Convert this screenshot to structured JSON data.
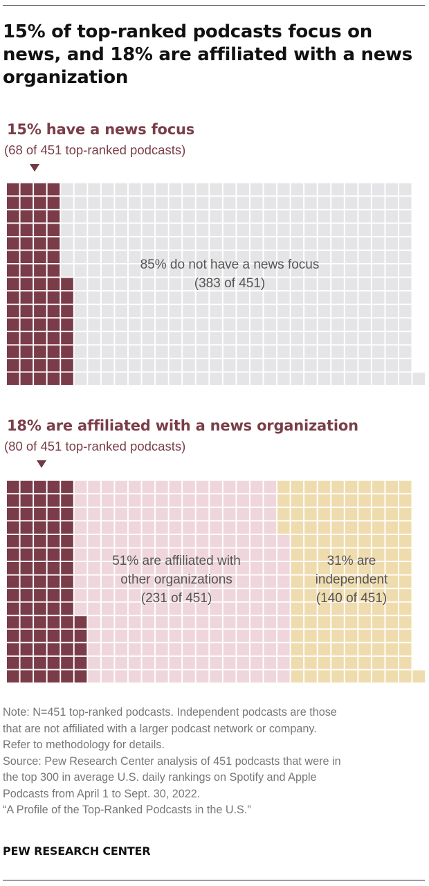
{
  "title": "15% of top-ranked podcasts focus on news, and 18% are affiliated with a news organization",
  "colors": {
    "news": "#7b3c49",
    "other_empty": "#e5e5e7",
    "other_org": "#eed6dc",
    "independent": "#efdcae",
    "label_text": "#7a3e48"
  },
  "chart_data": [
    {
      "type": "waffle",
      "total": 451,
      "header": "15% have a news focus",
      "subheader": "(68 of 451 top-ranked podcasts)",
      "segments": [
        {
          "name": "news focus",
          "count": 68,
          "label": ""
        },
        {
          "name": "no news focus",
          "count": 383,
          "label": "85% do not have a news focus\n(383 of 451)"
        }
      ]
    },
    {
      "type": "waffle",
      "total": 451,
      "header": "18% are affiliated with a news organization",
      "subheader": "(80 of 451 top-ranked podcasts)",
      "segments": [
        {
          "name": "news organization",
          "count": 80,
          "label": ""
        },
        {
          "name": "other organizations",
          "count": 231,
          "label": "51% are affiliated with\nother organizations\n(231 of 451)"
        },
        {
          "name": "independent",
          "count": 140,
          "label": "31% are\nindependent\n(140 of 451)"
        }
      ]
    }
  ],
  "notes": [
    "Note: N=451 top-ranked podcasts. Independent podcasts are those",
    "that are not affiliated with a larger podcast network or company.",
    "Refer to methodology for details.",
    "Source: Pew Research Center analysis of 451 podcasts that were in",
    "the top 300 in average U.S. daily rankings on Spotify and Apple",
    "Podcasts from April 1 to Sept. 30, 2022.",
    "“A Profile of the Top-Ranked Podcasts in the U.S.”"
  ],
  "brand": "PEW RESEARCH CENTER"
}
